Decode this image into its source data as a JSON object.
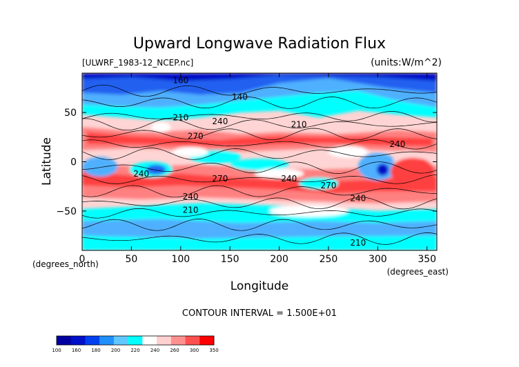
{
  "chart_data": {
    "type": "heatmap",
    "title": "Upward Longwave Radiation Flux",
    "subtitle_left": "[ULWRF_1983-12_NCEP.nc]",
    "subtitle_right": "(units:W/m^2)",
    "xlabel": "Longitude",
    "ylabel": "Latitude",
    "x_unit_label": "(degrees_east)",
    "y_unit_label": "(degrees_north)",
    "xlim": [
      0,
      360
    ],
    "ylim": [
      -90,
      90
    ],
    "x_ticks": [
      0,
      50,
      100,
      150,
      200,
      250,
      300,
      350
    ],
    "y_ticks": [
      -50,
      0,
      50
    ],
    "contour_interval_text": "CONTOUR INTERVAL = 1.500E+01",
    "contour_labels": [
      {
        "text": "210",
        "lon": 100,
        "lat": 42
      },
      {
        "text": "240",
        "lon": 140,
        "lat": 38
      },
      {
        "text": "270",
        "lon": 115,
        "lat": 23
      },
      {
        "text": "240",
        "lon": 60,
        "lat": -15
      },
      {
        "text": "270",
        "lon": 140,
        "lat": -20
      },
      {
        "text": "240",
        "lon": 210,
        "lat": -20
      },
      {
        "text": "270",
        "lon": 250,
        "lat": -27
      },
      {
        "text": "240",
        "lon": 110,
        "lat": -38
      },
      {
        "text": "210",
        "lon": 110,
        "lat": -52
      },
      {
        "text": "240",
        "lon": 280,
        "lat": -40
      },
      {
        "text": "210",
        "lon": 220,
        "lat": 35
      },
      {
        "text": "240",
        "lon": 320,
        "lat": 15
      },
      {
        "text": "210",
        "lon": 280,
        "lat": -85
      },
      {
        "text": "140",
        "lon": 160,
        "lat": 63
      },
      {
        "text": "160",
        "lon": 100,
        "lat": 80
      }
    ],
    "colorbar": {
      "labels": [
        "100",
        "160",
        "180",
        "200",
        "220",
        "240",
        "260",
        "300",
        "350"
      ],
      "colors": [
        "#0000a0",
        "#0010c8",
        "#0040f0",
        "#2090ff",
        "#60c8ff",
        "#00ffff",
        "#ffffff",
        "#ffd0d0",
        "#ff9090",
        "#ff5050",
        "#ff0000"
      ]
    },
    "field_colors": {
      "very_cold": "#0010c8",
      "cold": "#2060f0",
      "cool": "#50b0ff",
      "cyan": "#00ffff",
      "neutral": "#ffffff",
      "warm_light": "#ffd4d4",
      "warm": "#ff8080",
      "hot": "#ff4040",
      "contour_line": "#000000"
    }
  }
}
